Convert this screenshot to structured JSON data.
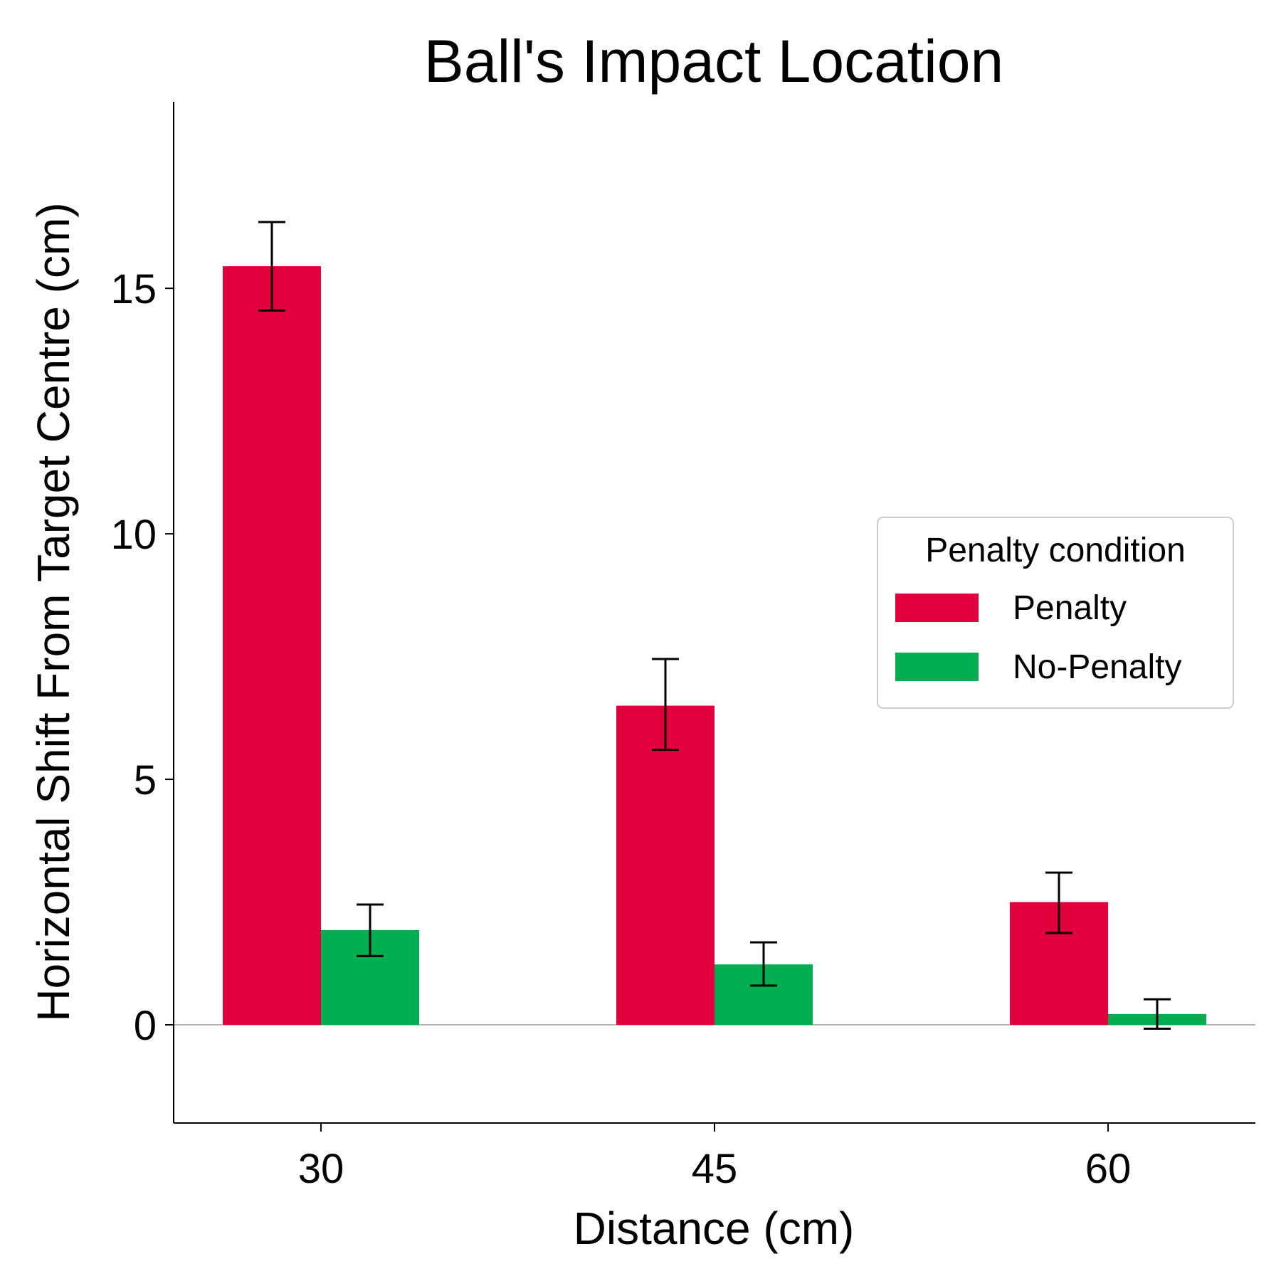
{
  "chart_data": {
    "type": "bar",
    "title": "Ball's Impact Location",
    "xlabel": "Distance (cm)",
    "ylabel": "Horizontal Shift From Target Centre (cm)",
    "categories": [
      "30",
      "45",
      "60"
    ],
    "ylim": [
      -2,
      18.8
    ],
    "yticks": [
      0,
      5,
      10,
      15
    ],
    "ytick_labels": [
      "0",
      "5",
      "10",
      "15"
    ],
    "grid": false,
    "zero_line": true,
    "legend": {
      "title": "Penalty condition",
      "placement": "center-right"
    },
    "series": [
      {
        "name": "Penalty",
        "color": "#e2003c",
        "values": [
          15.45,
          6.5,
          2.5
        ],
        "error_low": [
          14.55,
          5.6,
          1.87
        ],
        "error_high": [
          16.35,
          7.45,
          3.1
        ]
      },
      {
        "name": "No-Penalty",
        "color": "#00ad50",
        "values": [
          1.93,
          1.23,
          0.22
        ],
        "error_low": [
          1.4,
          0.8,
          -0.08
        ],
        "error_high": [
          2.45,
          1.68,
          0.52
        ]
      }
    ]
  }
}
